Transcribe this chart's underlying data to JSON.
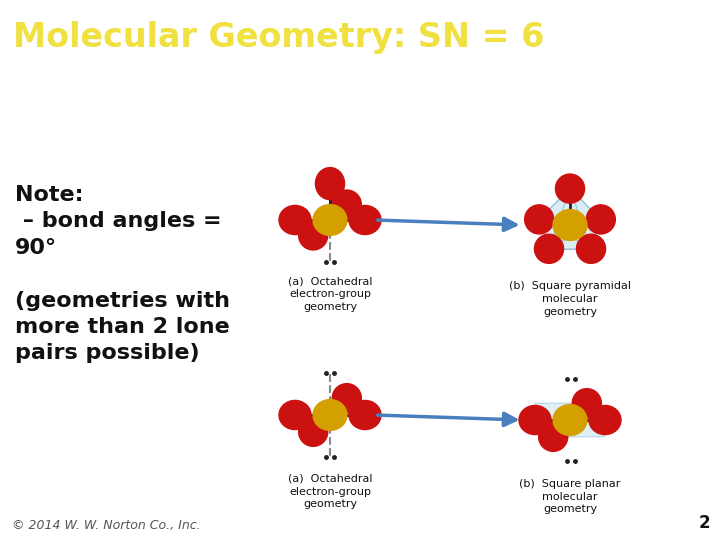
{
  "title": "Molecular Geometry: SN = 6",
  "title_bg_color": "#3a6b6b",
  "title_text_color": "#f0e040",
  "slide_bg_color": "#ffffff",
  "note_text": "Note:\n – bond angles =\n90°\n\n(geometries with\nmore than 2 lone\npairs possible)",
  "footer_text": "© 2014 W. W. Norton Co., Inc.",
  "footer_color": "#555555",
  "page_number": "2",
  "title_font_size": 24,
  "note_font_size": 16,
  "footer_font_size": 9,
  "center_color": "#d4a000",
  "atom_color": "#cc1111",
  "arrow_color": "#4a7fbf",
  "bond_color": "#222222",
  "cage_color": "#b0d8e8",
  "lp_dot_color": "#222222"
}
